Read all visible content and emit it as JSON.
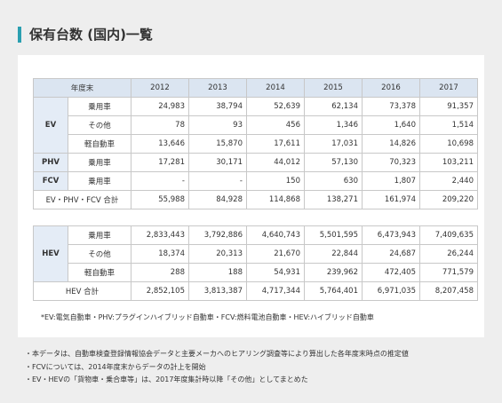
{
  "title": "保有台数 (国内)一覧",
  "table1": {
    "header": [
      "年度末",
      "2012",
      "2013",
      "2014",
      "2015",
      "2016",
      "2017"
    ],
    "groups": [
      {
        "label": "EV",
        "rows": [
          {
            "label": "乗用車",
            "cells": [
              "24,983",
              "38,794",
              "52,639",
              "62,134",
              "73,378",
              "91,357"
            ]
          },
          {
            "label": "その他",
            "cells": [
              "78",
              "93",
              "456",
              "1,346",
              "1,640",
              "1,514"
            ]
          },
          {
            "label": "軽自動車",
            "cells": [
              "13,646",
              "15,870",
              "17,611",
              "17,031",
              "14,826",
              "10,698"
            ]
          }
        ]
      },
      {
        "label": "PHV",
        "rows": [
          {
            "label": "乗用車",
            "cells": [
              "17,281",
              "30,171",
              "44,012",
              "57,130",
              "70,323",
              "103,211"
            ]
          }
        ]
      },
      {
        "label": "FCV",
        "rows": [
          {
            "label": "乗用車",
            "cells": [
              "-",
              "-",
              "150",
              "630",
              "1,807",
              "2,440"
            ]
          }
        ]
      }
    ],
    "total": {
      "label": "EV・PHV・FCV 合計",
      "cells": [
        "55,988",
        "84,928",
        "114,868",
        "138,271",
        "161,974",
        "209,220"
      ]
    }
  },
  "table2": {
    "groups": [
      {
        "label": "HEV",
        "rows": [
          {
            "label": "乗用車",
            "cells": [
              "2,833,443",
              "3,792,886",
              "4,640,743",
              "5,501,595",
              "6,473,943",
              "7,409,635"
            ]
          },
          {
            "label": "その他",
            "cells": [
              "18,374",
              "20,313",
              "21,670",
              "22,844",
              "24,687",
              "26,244"
            ]
          },
          {
            "label": "軽自動車",
            "cells": [
              "288",
              "188",
              "54,931",
              "239,962",
              "472,405",
              "771,579"
            ]
          }
        ]
      }
    ],
    "total": {
      "label": "HEV 合計",
      "cells": [
        "2,852,105",
        "3,813,387",
        "4,717,344",
        "5,764,401",
        "6,971,035",
        "8,207,458"
      ]
    }
  },
  "footnote": "*EV:電気自動車・PHV:プラグインハイブリッド自動車・FCV:燃料電池自動車・HEV:ハイブリッド自動車",
  "notes": [
    "・本データは、自動車検査登録情報協会データと主要メーカへのヒアリング調査等により算出した各年度末時点の推定値",
    "・FCVについては、2014年度末からデータの計上を開始",
    "・EV・HEVの「貨物車・乗合車等」は、2017年度集計時以降「その他」としてまとめた"
  ]
}
